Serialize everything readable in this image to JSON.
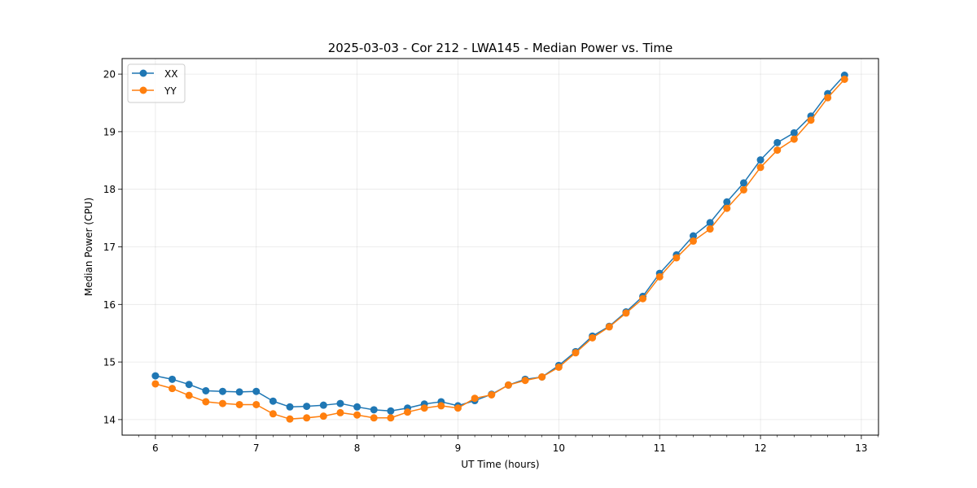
{
  "chart_data": {
    "type": "line",
    "title": "2025-03-03 - Cor 212 - LWA145 - Median Power vs. Time",
    "xlabel": "UT Time (hours)",
    "ylabel": "Median Power (CPU)",
    "xlim": [
      5.67,
      13.17
    ],
    "ylim": [
      13.73,
      20.27
    ],
    "xticks": [
      6,
      7,
      8,
      9,
      10,
      11,
      12,
      13
    ],
    "yticks": [
      14,
      15,
      16,
      17,
      18,
      19,
      20
    ],
    "grid": true,
    "legend_position": "top-left",
    "x": [
      6.0,
      6.1667,
      6.3333,
      6.5,
      6.6667,
      6.8333,
      7.0,
      7.1667,
      7.3333,
      7.5,
      7.6667,
      7.8333,
      8.0,
      8.1667,
      8.3333,
      8.5,
      8.6667,
      8.8333,
      9.0,
      9.1667,
      9.3333,
      9.5,
      9.6667,
      9.8333,
      10.0,
      10.1667,
      10.3333,
      10.5,
      10.6667,
      10.8333,
      11.0,
      11.1667,
      11.3333,
      11.5,
      11.6667,
      11.8333,
      12.0,
      12.1667,
      12.3333,
      12.5,
      12.6667,
      12.8333
    ],
    "series": [
      {
        "name": "XX",
        "color": "#1f77b4",
        "values": [
          14.76,
          14.7,
          14.61,
          14.5,
          14.49,
          14.48,
          14.49,
          14.32,
          14.22,
          14.23,
          14.25,
          14.28,
          14.22,
          14.17,
          14.15,
          14.2,
          14.27,
          14.31,
          14.24,
          14.33,
          14.44,
          14.6,
          14.7,
          14.74,
          14.94,
          15.18,
          15.45,
          15.62,
          15.87,
          16.14,
          16.54,
          16.86,
          17.19,
          17.42,
          17.78,
          18.11,
          18.51,
          18.81,
          18.98,
          19.27,
          19.66,
          19.98
        ]
      },
      {
        "name": "YY",
        "color": "#ff7f0e",
        "values": [
          14.62,
          14.54,
          14.42,
          14.31,
          14.28,
          14.26,
          14.26,
          14.1,
          14.01,
          14.03,
          14.06,
          14.12,
          14.08,
          14.03,
          14.03,
          14.13,
          14.2,
          14.24,
          14.2,
          14.37,
          14.43,
          14.6,
          14.68,
          14.74,
          14.91,
          15.16,
          15.42,
          15.61,
          15.85,
          16.1,
          16.48,
          16.81,
          17.1,
          17.31,
          17.67,
          17.99,
          18.38,
          18.68,
          18.87,
          19.2,
          19.59,
          19.91
        ]
      }
    ]
  }
}
